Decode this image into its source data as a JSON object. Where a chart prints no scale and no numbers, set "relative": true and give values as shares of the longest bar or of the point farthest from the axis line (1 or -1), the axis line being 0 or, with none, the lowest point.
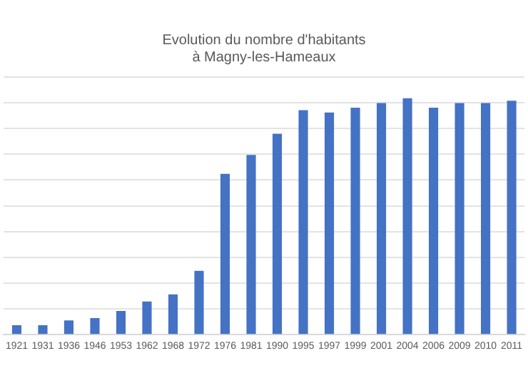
{
  "chart_data": {
    "type": "bar",
    "title": "Evolution du nombre d'habitants\nà Magny-les-Hameaux",
    "relative": true,
    "grid": "y",
    "legend": false,
    "color": "#4472c4",
    "categories": [
      "1921",
      "1931",
      "1936",
      "1946",
      "1953",
      "1962",
      "1968",
      "1972",
      "1976",
      "1981",
      "1990",
      "1995",
      "1997",
      "1999",
      "2001",
      "2004",
      "2006",
      "2009",
      "2010",
      "2011"
    ],
    "values": [
      0.04,
      0.04,
      0.06,
      0.07,
      0.1,
      0.14,
      0.17,
      0.27,
      0.68,
      0.76,
      0.85,
      0.95,
      0.94,
      0.96,
      0.98,
      1,
      0.96,
      0.98,
      0.98,
      0.99
    ]
  }
}
